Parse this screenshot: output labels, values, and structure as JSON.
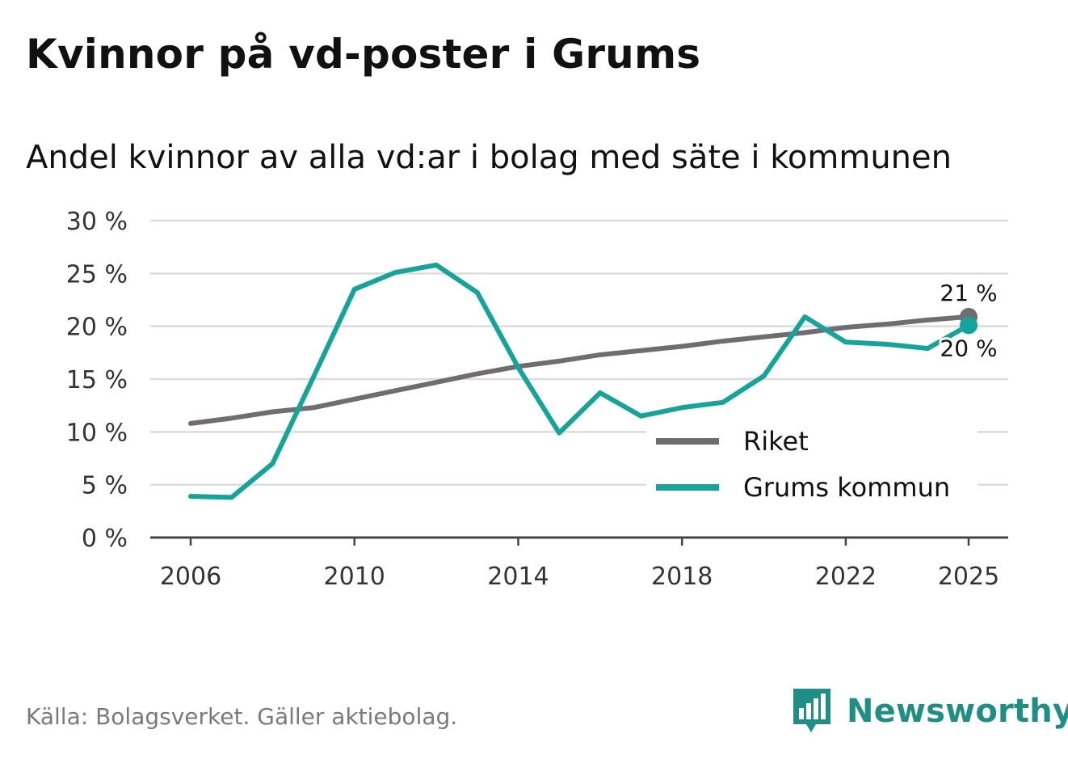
{
  "title": "Kvinnor på vd-poster i Grums",
  "subtitle": "Andel kvinnor av alla vd:ar i bolag med säte i kommunen",
  "footer": "Källa: Bolagsverket. Gäller aktiebolag.",
  "brand": "Newsworthy",
  "colors": {
    "riket": "#6f6d72",
    "grums": "#14a49a",
    "grid": "#dcdcdc",
    "axis": "#444444",
    "brand": "#1f8f86"
  },
  "chart_data": {
    "type": "line",
    "x": [
      2006,
      2007,
      2008,
      2009,
      2010,
      2011,
      2012,
      2013,
      2014,
      2015,
      2016,
      2017,
      2018,
      2019,
      2020,
      2021,
      2022,
      2023,
      2024,
      2025
    ],
    "series": [
      {
        "name": "Riket",
        "values": [
          10.8,
          11.3,
          11.9,
          12.3,
          13.1,
          13.9,
          14.7,
          15.5,
          16.2,
          16.7,
          17.3,
          17.7,
          18.1,
          18.6,
          19.0,
          19.4,
          19.9,
          20.2,
          20.6,
          20.9
        ]
      },
      {
        "name": "Grums kommun",
        "values": [
          3.9,
          3.8,
          7.0,
          15.2,
          23.5,
          25.1,
          25.8,
          23.2,
          16.1,
          9.9,
          13.7,
          11.5,
          12.3,
          12.8,
          15.3,
          20.9,
          18.5,
          18.3,
          17.9,
          20.1
        ]
      }
    ],
    "end_labels": [
      "21 %",
      "20 %"
    ],
    "ylim": [
      0,
      30
    ],
    "yticks": [
      0,
      5,
      10,
      15,
      20,
      25,
      30
    ],
    "ytick_labels": [
      "0 %",
      "5 %",
      "10 %",
      "15 %",
      "20 %",
      "25 %",
      "30 %"
    ],
    "xticks": [
      2006,
      2010,
      2014,
      2018,
      2022,
      2025
    ],
    "xtick_labels": [
      "2006",
      "2010",
      "2014",
      "2018",
      "2022",
      "2025"
    ],
    "legend": [
      "Riket",
      "Grums kommun"
    ],
    "legend_position": "bottom-right",
    "grid": true
  }
}
